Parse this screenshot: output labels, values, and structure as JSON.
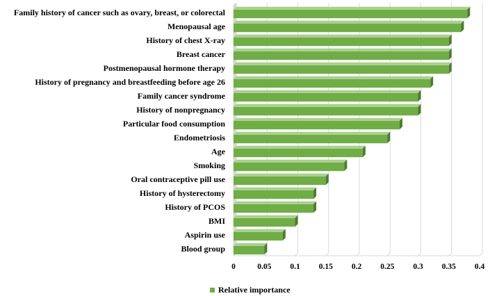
{
  "chart_data": {
    "type": "bar",
    "orientation": "horizontal",
    "style": "3d",
    "title": "",
    "xlabel": "",
    "ylabel": "",
    "xlim": [
      0,
      0.4
    ],
    "ticks": [
      "0",
      "0.05",
      "0.1",
      "0.15",
      "0.2",
      "0.25",
      "0.3",
      "0.35",
      "0.4"
    ],
    "tick_values": [
      0,
      0.05,
      0.1,
      0.15,
      0.2,
      0.25,
      0.3,
      0.35,
      0.4
    ],
    "grid": true,
    "legend_position": "bottom",
    "color": "#70AD47",
    "categories": [
      "Family history of cancer such as ovary, breast, or colorectal",
      "Menopausal age",
      "History of chest X-ray",
      "Breast cancer",
      "Postmenopausal hormone therapy",
      "History of pregnancy and breastfeeding before age 26",
      "Family cancer syndrome",
      "History of nonpregnancy",
      "Particular food consumption",
      "Endometriosis",
      "Age",
      "Smoking",
      "Oral contraceptive pill use",
      "History of hysterectomy",
      "History of PCOS",
      "BMI",
      "Aspirin use",
      "Blood group"
    ],
    "series": [
      {
        "name": "Relative importance",
        "values": [
          0.38,
          0.37,
          0.35,
          0.35,
          0.35,
          0.32,
          0.3,
          0.3,
          0.27,
          0.25,
          0.21,
          0.18,
          0.15,
          0.13,
          0.13,
          0.1,
          0.08,
          0.05
        ]
      }
    ]
  }
}
